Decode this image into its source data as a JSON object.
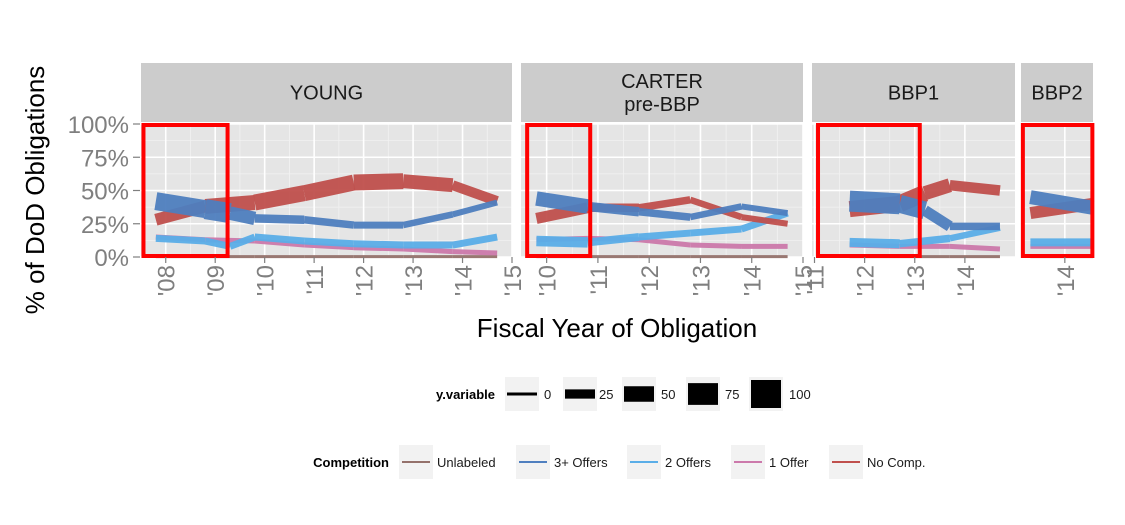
{
  "chart_data": {
    "type": "line",
    "ylabel": "% of DoD Obligations",
    "xlabel": "Fiscal Year of Obligation",
    "y_ticks": [
      "0%",
      "25%",
      "50%",
      "75%",
      "100%"
    ],
    "ylim": [
      0,
      1
    ],
    "facets": [
      {
        "name": "YOUNG",
        "xlim": [
          2007.5,
          2015
        ],
        "x_ticks": [
          {
            "v": 2008,
            "label": "'08"
          },
          {
            "v": 2009,
            "label": "'09"
          },
          {
            "v": 2010,
            "label": "'10"
          },
          {
            "v": 2011,
            "label": "'11"
          },
          {
            "v": 2012,
            "label": "'12"
          },
          {
            "v": 2013,
            "label": "'13"
          },
          {
            "v": 2014,
            "label": "'14"
          },
          {
            "v": 2015,
            "label": "'15"
          }
        ],
        "highlight": [
          2007.55,
          2009.25
        ],
        "series": [
          {
            "key": "unlabeled",
            "x": [
              2007.8,
              2008.8,
              2009.8,
              2010.8,
              2011.8,
              2012.8,
              2013.8,
              2014.7
            ],
            "y": [
              0.003,
              0.003,
              0.003,
              0.003,
              0.003,
              0.003,
              0.003,
              0.003
            ],
            "w": [
              3,
              3,
              3,
              3,
              3,
              3,
              3,
              3
            ]
          },
          {
            "key": "one_offer",
            "x": [
              2007.8,
              2008.8,
              2009.8,
              2010.8,
              2011.8,
              2012.8,
              2013.8,
              2014.7
            ],
            "y": [
              0.15,
              0.13,
              0.12,
              0.09,
              0.07,
              0.06,
              0.04,
              0.03
            ],
            "w": [
              5,
              5,
              5,
              5,
              5,
              5,
              5,
              5
            ]
          },
          {
            "key": "two_offers",
            "x": [
              2007.8,
              2008.8,
              2009.3,
              2009.8,
              2010.8,
              2011.8,
              2012.8,
              2013.8,
              2014.7
            ],
            "y": [
              0.14,
              0.12,
              0.08,
              0.15,
              0.12,
              0.1,
              0.09,
              0.09,
              0.15
            ],
            "w": [
              7,
              7,
              7,
              7,
              7,
              7,
              7,
              7,
              7
            ]
          },
          {
            "key": "no_comp",
            "x": [
              2007.8,
              2008.8,
              2009.8,
              2010.8,
              2011.8,
              2012.8,
              2013.8,
              2014.7
            ],
            "y": [
              0.28,
              0.38,
              0.41,
              0.48,
              0.56,
              0.57,
              0.54,
              0.42
            ],
            "w": [
              10,
              14,
              16,
              16,
              16,
              16,
              12,
              8
            ]
          },
          {
            "key": "three_plus",
            "x": [
              2007.8,
              2008.8,
              2009.3,
              2009.8,
              2010.8,
              2011.8,
              2012.8,
              2013.8,
              2014.7
            ],
            "y": [
              0.42,
              0.36,
              0.33,
              0.29,
              0.28,
              0.24,
              0.24,
              0.32,
              0.41
            ],
            "w": [
              14,
              22,
              18,
              9,
              8,
              7,
              7,
              6,
              6
            ]
          }
        ]
      },
      {
        "name": "CARTER\npre-BBP",
        "xlim": [
          2009.5,
          2015
        ],
        "x_ticks": [
          {
            "v": 2010,
            "label": "'10"
          },
          {
            "v": 2011,
            "label": "'11"
          },
          {
            "v": 2012,
            "label": "'12"
          },
          {
            "v": 2013,
            "label": "'13"
          },
          {
            "v": 2014,
            "label": "'14"
          },
          {
            "v": 2015,
            "label": "'15"
          }
        ],
        "highlight": [
          2009.62,
          2010.85
        ],
        "series": [
          {
            "key": "unlabeled",
            "x": [
              2009.8,
              2010.8,
              2011.8,
              2012.8,
              2013.8,
              2014.7
            ],
            "y": [
              0.003,
              0.003,
              0.003,
              0.003,
              0.003,
              0.003
            ],
            "w": [
              3,
              3,
              3,
              3,
              3,
              3
            ]
          },
          {
            "key": "one_offer",
            "x": [
              2009.8,
              2010.8,
              2011.8,
              2012.8,
              2013.8,
              2014.7
            ],
            "y": [
              0.13,
              0.14,
              0.13,
              0.09,
              0.08,
              0.08
            ],
            "w": [
              5,
              5,
              5,
              5,
              5,
              5
            ]
          },
          {
            "key": "two_offers",
            "x": [
              2009.8,
              2010.8,
              2011.8,
              2012.8,
              2013.8,
              2014.7
            ],
            "y": [
              0.12,
              0.11,
              0.15,
              0.18,
              0.21,
              0.33
            ],
            "w": [
              12,
              9,
              7,
              7,
              7,
              7
            ]
          },
          {
            "key": "no_comp",
            "x": [
              2009.8,
              2010.8,
              2011.8,
              2012.8,
              2013.8,
              2014.7
            ],
            "y": [
              0.29,
              0.37,
              0.37,
              0.43,
              0.3,
              0.25
            ],
            "w": [
              13,
              9,
              8,
              7,
              6,
              6
            ]
          },
          {
            "key": "three_plus",
            "x": [
              2009.8,
              2010.8,
              2011.8,
              2012.8,
              2013.8,
              2014.7
            ],
            "y": [
              0.44,
              0.38,
              0.34,
              0.3,
              0.38,
              0.33
            ],
            "w": [
              18,
              11,
              8,
              7,
              6,
              6
            ]
          }
        ]
      },
      {
        "name": "BBP1",
        "xlim": [
          2010.95,
          2015
        ],
        "x_ticks": [
          {
            "v": 2011,
            "label": "'11"
          },
          {
            "v": 2012,
            "label": "'12"
          },
          {
            "v": 2013,
            "label": "'13"
          },
          {
            "v": 2014,
            "label": "'14"
          }
        ],
        "highlight": [
          2011.07,
          2013.1
        ],
        "series": [
          {
            "key": "unlabeled",
            "x": [
              2011.7,
              2012.7,
              2013.7,
              2014.7
            ],
            "y": [
              0.003,
              0.003,
              0.003,
              0.003
            ],
            "w": [
              3,
              3,
              3,
              3
            ]
          },
          {
            "key": "one_offer",
            "x": [
              2011.7,
              2012.7,
              2013.7,
              2014.7
            ],
            "y": [
              0.09,
              0.08,
              0.08,
              0.06
            ],
            "w": [
              5,
              5,
              5,
              5
            ]
          },
          {
            "key": "two_offers",
            "x": [
              2011.7,
              2012.7,
              2013.7,
              2014.7
            ],
            "y": [
              0.11,
              0.1,
              0.14,
              0.22
            ],
            "w": [
              10,
              8,
              7,
              6
            ]
          },
          {
            "key": "no_comp",
            "x": [
              2011.7,
              2012.7,
              2013.2,
              2013.7,
              2014.7
            ],
            "y": [
              0.36,
              0.4,
              0.48,
              0.54,
              0.5
            ],
            "w": [
              14,
              18,
              16,
              12,
              9
            ]
          },
          {
            "key": "three_plus",
            "x": [
              2011.7,
              2012.7,
              2013.2,
              2013.7,
              2014.7
            ],
            "y": [
              0.42,
              0.4,
              0.35,
              0.23,
              0.23
            ],
            "w": [
              20,
              22,
              14,
              8,
              7
            ]
          }
        ]
      },
      {
        "name": "BBP2",
        "xlim": [
          2013.3,
          2014.45
        ],
        "x_ticks": [
          {
            "v": 2014,
            "label": "'14"
          }
        ],
        "highlight": [
          2013.33,
          2014.44
        ],
        "series": [
          {
            "key": "unlabeled",
            "x": [
              2013.45,
              2014.45
            ],
            "y": [
              0.003,
              0.003
            ],
            "w": [
              3,
              3
            ]
          },
          {
            "key": "one_offer",
            "x": [
              2013.45,
              2014.45
            ],
            "y": [
              0.08,
              0.08
            ],
            "w": [
              5,
              5
            ]
          },
          {
            "key": "two_offers",
            "x": [
              2013.45,
              2014.45
            ],
            "y": [
              0.11,
              0.11
            ],
            "w": [
              8,
              8
            ]
          },
          {
            "key": "no_comp",
            "x": [
              2013.45,
              2014.45
            ],
            "y": [
              0.33,
              0.4
            ],
            "w": [
              12,
              12
            ]
          },
          {
            "key": "three_plus",
            "x": [
              2013.45,
              2014.45
            ],
            "y": [
              0.45,
              0.37
            ],
            "w": [
              14,
              14
            ]
          }
        ]
      }
    ],
    "legend_size": {
      "title": "y.variable",
      "entries": [
        {
          "label": "0",
          "value": 0
        },
        {
          "label": "25",
          "value": 25
        },
        {
          "label": "50",
          "value": 50
        },
        {
          "label": "75",
          "value": 75
        },
        {
          "label": "100",
          "value": 100
        }
      ]
    },
    "legend_color": {
      "title": "Competition",
      "entries": [
        {
          "key": "unlabeled",
          "label": "Unlabeled",
          "color": "#94716b"
        },
        {
          "key": "three_plus",
          "label": "3+ Offers",
          "color": "#4f7fbf"
        },
        {
          "key": "two_offers",
          "label": "2 Offers",
          "color": "#5aaee8"
        },
        {
          "key": "one_offer",
          "label": "1 Offer",
          "color": "#cc79ab"
        },
        {
          "key": "no_comp",
          "label": "No Comp.",
          "color": "#c0504d"
        }
      ]
    },
    "highlight_color": "#ff0000",
    "panel_background": "#e5e5e5",
    "strip_background": "#cccccc"
  }
}
